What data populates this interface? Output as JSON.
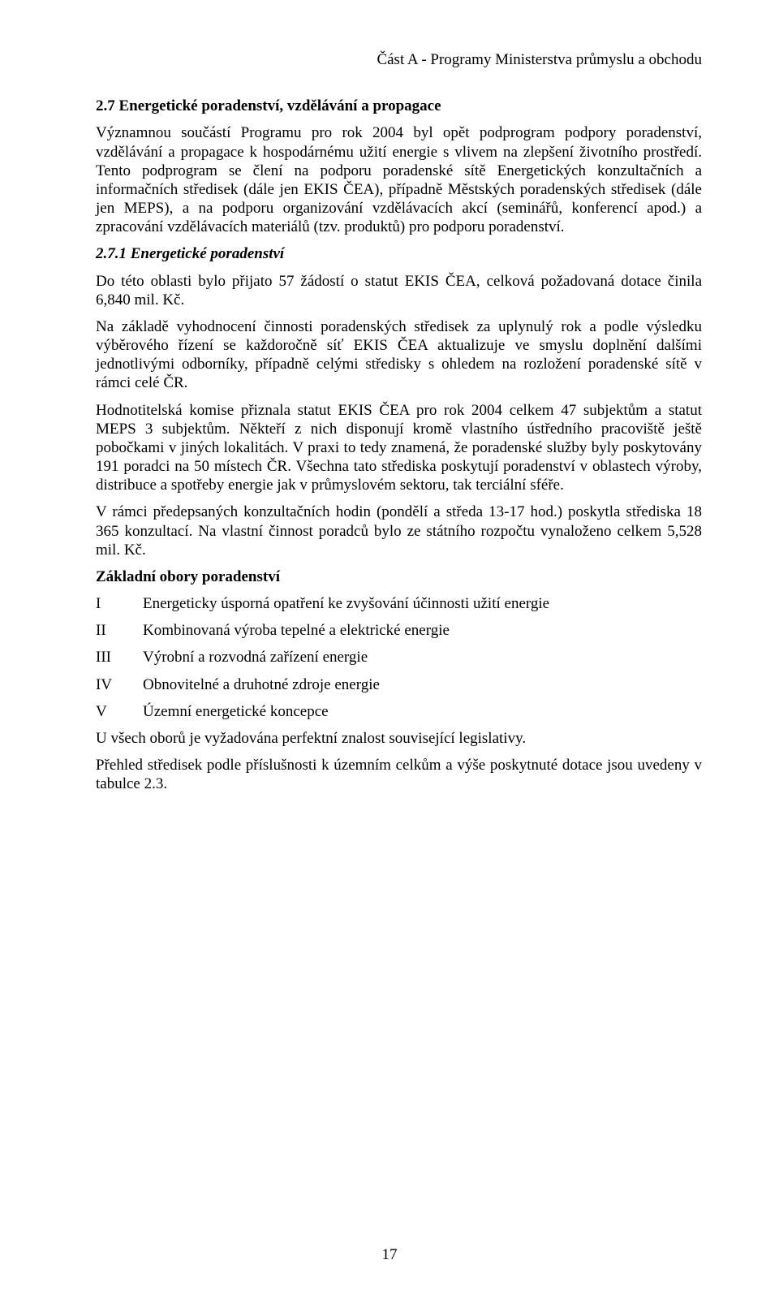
{
  "header": {
    "running_title": "Část A - Programy Ministerstva průmyslu a obchodu"
  },
  "section": {
    "heading": "2.7 Energetické poradenství, vzdělávání a propagace",
    "p1": "Významnou součástí Programu pro rok 2004 byl opět podprogram podpory poradenství, vzdělávání a propagace k hospodárnému užití energie s vlivem na zlepšení životního prostředí. Tento podprogram se člení na podporu poradenské sítě Energetických konzultačních a informačních středisek (dále jen EKIS ČEA), případně Městských poradenských středisek (dále jen MEPS), a na podporu organizování vzdělávacích akcí (seminářů, konferencí apod.) a zpracování vzdělávacích materiálů (tzv. produktů) pro podporu poradenství.",
    "sub_heading": "2.7.1 Energetické poradenství",
    "p2": "Do této oblasti bylo přijato 57 žádostí o statut EKIS ČEA, celková požadovaná dotace činila 6,840 mil. Kč.",
    "p3": "Na základě vyhodnocení činnosti poradenských středisek za uplynulý rok a podle výsledku výběrového řízení se každoročně síť EKIS ČEA aktualizuje ve smyslu doplnění dalšími jednotlivými odborníky, případně celými středisky s ohledem na rozložení poradenské sítě v rámci celé ČR.",
    "p4": "Hodnotitelská komise přiznala statut EKIS ČEA pro rok 2004 celkem 47 subjektům a statut MEPS 3 subjektům. Někteří z nich disponují kromě vlastního ústředního pracoviště ještě pobočkami v jiných lokalitách. V praxi to tedy znamená, že poradenské služby byly poskytovány 191 poradci na 50 místech ČR. Všechna tato střediska poskytují poradenství v oblastech výroby, distribuce a spotřeby energie jak v průmyslovém sektoru, tak terciální sféře.",
    "p5": "V rámci předepsaných konzultačních hodin (pondělí a středa 13-17 hod.) poskytla střediska 18 365 konzultací. Na vlastní činnost poradců bylo ze státního rozpočtu vynaloženo celkem 5,528 mil. Kč.",
    "list_heading": "Základní obory poradenství",
    "list": [
      {
        "term": "I",
        "def": "Energeticky úsporná opatření ke zvyšování účinnosti užití energie"
      },
      {
        "term": "II",
        "def": "Kombinovaná výroba tepelné a elektrické energie"
      },
      {
        "term": "III",
        "def": "Výrobní a rozvodná zařízení energie"
      },
      {
        "term": "IV",
        "def": "Obnovitelné a druhotné zdroje energie"
      },
      {
        "term": "V",
        "def": "Územní energetické koncepce"
      }
    ],
    "p6": "U všech oborů je vyžadována perfektní znalost související legislativy.",
    "p7": "Přehled středisek podle příslušnosti k územním celkům a výše poskytnuté dotace jsou uvedeny v tabulce 2.3."
  },
  "page_number": "17"
}
